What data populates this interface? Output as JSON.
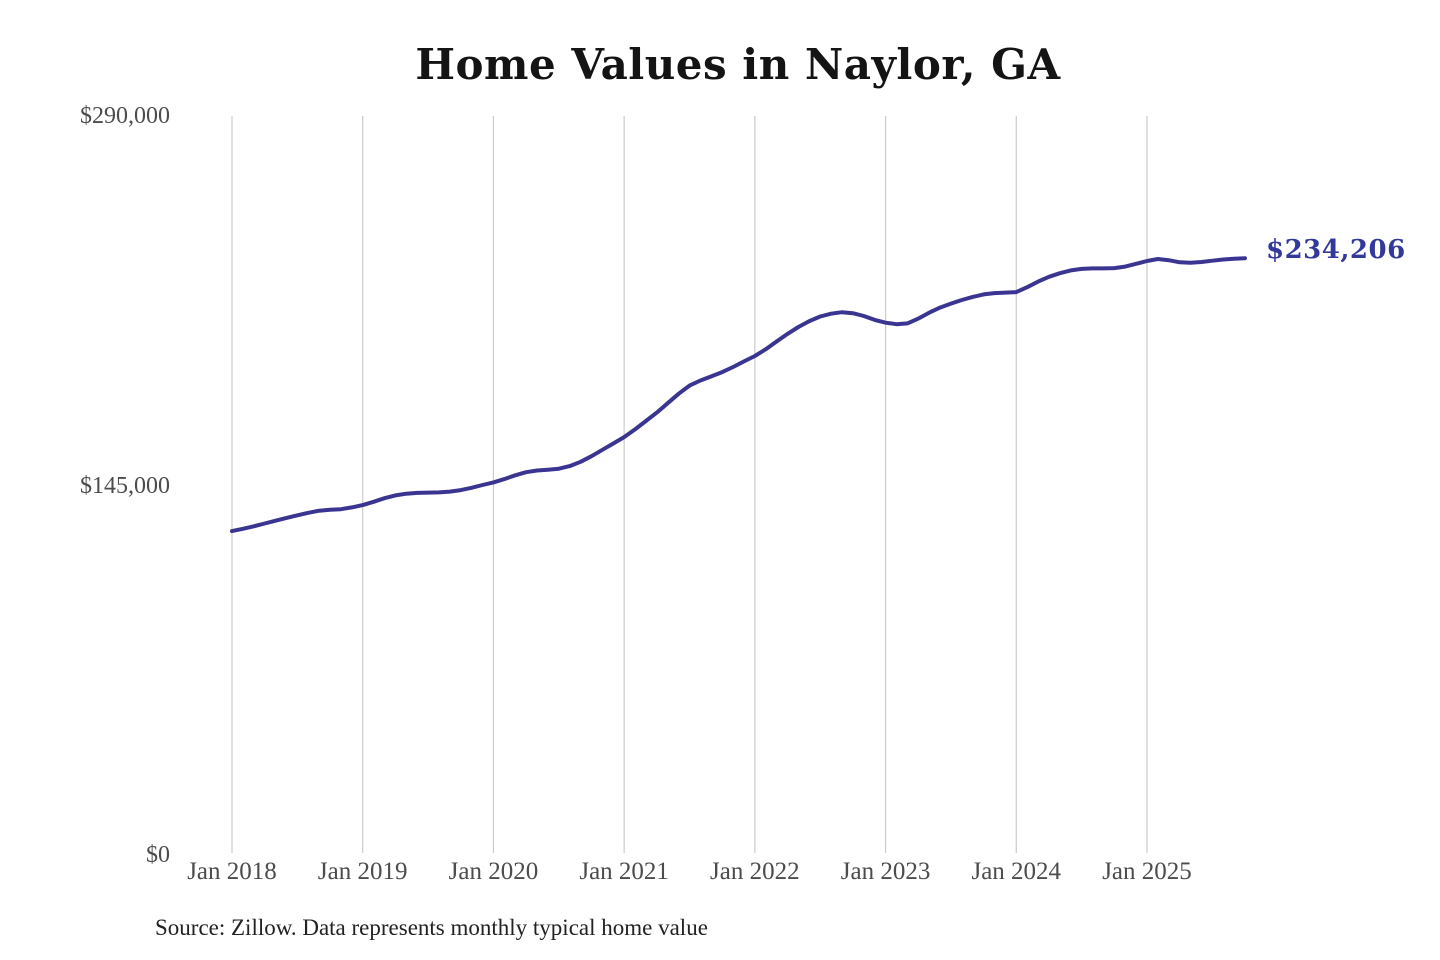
{
  "chart_data": {
    "type": "line",
    "title": "Home Values in Naylor, GA",
    "source": "Source: Zillow. Data represents monthly typical home value",
    "end_label": "$234,206",
    "latest_value": 234206,
    "ylim": [
      0,
      290000
    ],
    "y_tick_labels": [
      "$290,000",
      "$145,000",
      "$0"
    ],
    "x_tick_labels": [
      "Jan 2018",
      "Jan 2019",
      "Jan 2020",
      "Jan 2021",
      "Jan 2022",
      "Jan 2023",
      "Jan 2024",
      "Jan 2025"
    ],
    "line_color": "#3b3592",
    "grid": "vertical-only",
    "legend": "none",
    "x": [
      "2018-01",
      "2018-02",
      "2018-03",
      "2018-04",
      "2018-05",
      "2018-06",
      "2018-07",
      "2018-08",
      "2018-09",
      "2018-10",
      "2018-11",
      "2018-12",
      "2019-01",
      "2019-02",
      "2019-03",
      "2019-04",
      "2019-05",
      "2019-06",
      "2019-07",
      "2019-08",
      "2019-09",
      "2019-10",
      "2019-11",
      "2019-12",
      "2020-01",
      "2020-02",
      "2020-03",
      "2020-04",
      "2020-05",
      "2020-06",
      "2020-07",
      "2020-08",
      "2020-09",
      "2020-10",
      "2020-11",
      "2020-12",
      "2021-01",
      "2021-02",
      "2021-03",
      "2021-04",
      "2021-05",
      "2021-06",
      "2021-07",
      "2021-08",
      "2021-09",
      "2021-10",
      "2021-11",
      "2021-12",
      "2022-01",
      "2022-02",
      "2022-03",
      "2022-04",
      "2022-05",
      "2022-06",
      "2022-07",
      "2022-08",
      "2022-09",
      "2022-10",
      "2022-11",
      "2022-12",
      "2023-01",
      "2023-02",
      "2023-03",
      "2023-04",
      "2023-05",
      "2023-06",
      "2023-07",
      "2023-08",
      "2023-09",
      "2023-10",
      "2023-11",
      "2023-12",
      "2024-01",
      "2024-02",
      "2024-03",
      "2024-04",
      "2024-05",
      "2024-06",
      "2024-07",
      "2024-08",
      "2024-09",
      "2024-10",
      "2024-11",
      "2024-12",
      "2025-01",
      "2025-02",
      "2025-03",
      "2025-04",
      "2025-05",
      "2025-06",
      "2025-07",
      "2025-08",
      "2025-09",
      "2025-10"
    ],
    "series": [
      {
        "name": "Monthly typical home value",
        "values": [
          127100,
          128000,
          129000,
          130100,
          131200,
          132300,
          133300,
          134300,
          135100,
          135500,
          135700,
          136400,
          137300,
          138600,
          140000,
          141100,
          141800,
          142100,
          142200,
          142300,
          142600,
          143200,
          144100,
          145200,
          146200,
          147500,
          149000,
          150200,
          150900,
          151200,
          151600,
          152600,
          154300,
          156500,
          159000,
          161500,
          164000,
          167000,
          170300,
          173600,
          177300,
          181000,
          184200,
          186200,
          187800,
          189500,
          191500,
          193700,
          195800,
          198500,
          201500,
          204500,
          207200,
          209500,
          211300,
          212400,
          213000,
          212600,
          211500,
          210000,
          208900,
          208300,
          208600,
          210500,
          212800,
          214800,
          216400,
          217800,
          219000,
          220000,
          220500,
          220700,
          220900,
          222800,
          225000,
          226900,
          228300,
          229400,
          230000,
          230200,
          230200,
          230300,
          230900,
          232000,
          233100,
          233900,
          233400,
          232600,
          232400,
          232700,
          233200,
          233700,
          234000,
          234206
        ]
      }
    ]
  }
}
